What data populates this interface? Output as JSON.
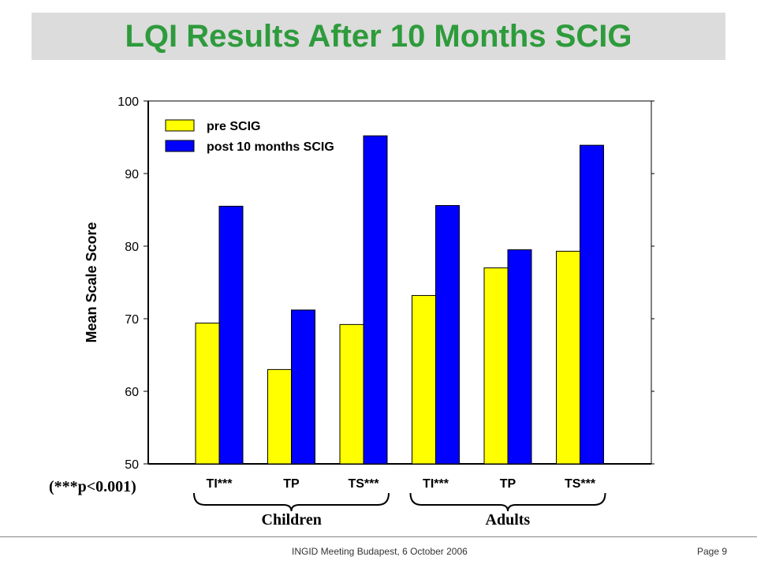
{
  "slide": {
    "title": "LQI Results After 10 Months SCIG",
    "significance_note": "(***p<0.001)",
    "footer": "INGID  Meeting Budapest,  6 October 2006",
    "page": "Page 9"
  },
  "chart_data": {
    "type": "bar",
    "title": "",
    "ylabel": "Mean Scale Score",
    "xlabel": "",
    "ylim": [
      50,
      100
    ],
    "yticks": [
      50,
      60,
      70,
      80,
      90,
      100
    ],
    "grid": false,
    "legend_position": "top-left",
    "categories": [
      "TI***",
      "TP",
      "TS***",
      "TI***",
      "TP",
      "TS***"
    ],
    "groups": [
      {
        "label": "Children",
        "categories": [
          0,
          1,
          2
        ]
      },
      {
        "label": "Adults",
        "categories": [
          3,
          4,
          5
        ]
      }
    ],
    "series": [
      {
        "name": "pre SCIG",
        "color": "#ffff00",
        "values": [
          69.4,
          63.0,
          69.2,
          73.2,
          77.0,
          79.3
        ]
      },
      {
        "name": "post 10 months SCIG",
        "color": "#0000ff",
        "values": [
          85.5,
          71.2,
          95.2,
          85.6,
          79.5,
          93.9
        ]
      }
    ]
  }
}
